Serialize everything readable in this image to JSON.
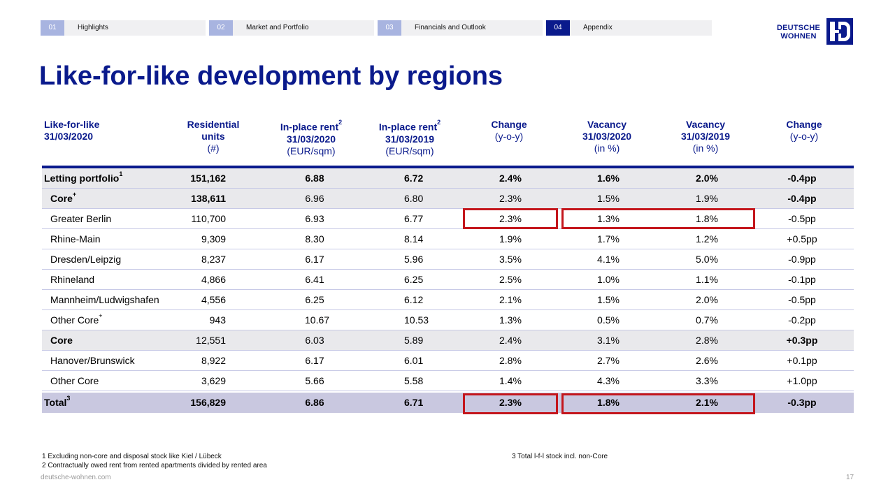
{
  "nav": [
    {
      "num": "01",
      "label": "Highlights",
      "active": false
    },
    {
      "num": "02",
      "label": "Market and Portfolio",
      "active": false
    },
    {
      "num": "03",
      "label": "Financials and Outlook",
      "active": false
    },
    {
      "num": "04",
      "label": "Appendix",
      "active": true
    }
  ],
  "logo": {
    "line1": "DEUTSCHE",
    "line2": "WOHNEN"
  },
  "title": "Like-for-like development by regions",
  "headers": {
    "region": {
      "l1": "Like-for-like",
      "l2": "31/03/2020"
    },
    "units": {
      "l1": "Residential",
      "l2": "units",
      "l3": "(#)"
    },
    "rent20": {
      "l1": "In-place rent",
      "sup": "2",
      "l2": "31/03/2020",
      "l3": "(EUR/sqm)"
    },
    "rent19": {
      "l1": "In-place rent",
      "sup": "2",
      "l2": "31/03/2019",
      "l3": "(EUR/sqm)"
    },
    "chg": {
      "l1": "Change",
      "l2": "(y-o-y)"
    },
    "vac20": {
      "l1": "Vacancy",
      "l2": "31/03/2020",
      "l3": "(in %)"
    },
    "vac19": {
      "l1": "Vacancy",
      "l2": "31/03/2019",
      "l3": "(in %)"
    },
    "vchg": {
      "l1": "Change",
      "l2": "(y-o-y)"
    }
  },
  "rows": [
    {
      "region": "Letting portfolio",
      "sup": "1",
      "units": "151,162",
      "rent20": "6.88",
      "rent19": "6.72",
      "chg": "2.4%",
      "vac20": "1.6%",
      "vac19": "2.0%",
      "vchg": "-0.4pp"
    },
    {
      "region": "Core",
      "sup": "+",
      "units": "138,611",
      "rent20": "6.96",
      "rent19": "6.80",
      "chg": "2.3%",
      "vac20": "1.5%",
      "vac19": "1.9%",
      "vchg": "-0.4pp"
    },
    {
      "region": "Greater Berlin",
      "sup": "",
      "units": "110,700",
      "rent20": "6.93",
      "rent19": "6.77",
      "chg": "2.3%",
      "vac20": "1.3%",
      "vac19": "1.8%",
      "vchg": "-0.5pp"
    },
    {
      "region": "Rhine-Main",
      "sup": "",
      "units": "9,309",
      "rent20": "8.30",
      "rent19": "8.14",
      "chg": "1.9%",
      "vac20": "1.7%",
      "vac19": "1.2%",
      "vchg": "+0.5pp"
    },
    {
      "region": "Dresden/Leipzig",
      "sup": "",
      "units": "8,237",
      "rent20": "6.17",
      "rent19": "5.96",
      "chg": "3.5%",
      "vac20": "4.1%",
      "vac19": "5.0%",
      "vchg": "-0.9pp"
    },
    {
      "region": "Rhineland",
      "sup": "",
      "units": "4,866",
      "rent20": "6.41",
      "rent19": "6.25",
      "chg": "2.5%",
      "vac20": "1.0%",
      "vac19": "1.1%",
      "vchg": "-0.1pp"
    },
    {
      "region": "Mannheim/Ludwigshafen",
      "sup": "",
      "units": "4,556",
      "rent20": "6.25",
      "rent19": "6.12",
      "chg": "2.1%",
      "vac20": "1.5%",
      "vac19": "2.0%",
      "vchg": "-0.5pp"
    },
    {
      "region": "Other Core",
      "sup": "+",
      "units": "943",
      "rent20": "10.67",
      "rent19": "10.53",
      "chg": "1.3%",
      "vac20": "0.5%",
      "vac19": "0.7%",
      "vchg": "-0.2pp"
    },
    {
      "region": "Core",
      "sup": "",
      "units": "12,551",
      "rent20": "6.03",
      "rent19": "5.89",
      "chg": "2.4%",
      "vac20": "3.1%",
      "vac19": "2.8%",
      "vchg": "+0.3pp"
    },
    {
      "region": "Hanover/Brunswick",
      "sup": "",
      "units": "8,922",
      "rent20": "6.17",
      "rent19": "6.01",
      "chg": "2.8%",
      "vac20": "2.7%",
      "vac19": "2.6%",
      "vchg": "+0.1pp"
    },
    {
      "region": "Other Core",
      "sup": "",
      "units": "3,629",
      "rent20": "5.66",
      "rent19": "5.58",
      "chg": "1.4%",
      "vac20": "4.3%",
      "vac19": "3.3%",
      "vchg": "+1.0pp"
    },
    {
      "region": "Total",
      "sup": "3",
      "units": "156,829",
      "rent20": "6.86",
      "rent19": "6.71",
      "chg": "2.3%",
      "vac20": "1.8%",
      "vac19": "2.1%",
      "vchg": "-0.3pp"
    }
  ],
  "footnotes": {
    "f1": "1 Excluding non-core and disposal stock like Kiel / Lübeck",
    "f2": "2 Contractually owed rent from rented apartments divided by rented area",
    "f3": "3 Total l-f-l  stock incl. non-Core"
  },
  "footer": {
    "url": "deutsche-wohnen.com",
    "page": "17"
  },
  "colors": {
    "brand": "#0a1a8c",
    "nav_inactive": "#a8b4e0",
    "highlight": "#c4161c",
    "total_row": "#c9c8e0",
    "shade_row": "#e9e9ec"
  }
}
